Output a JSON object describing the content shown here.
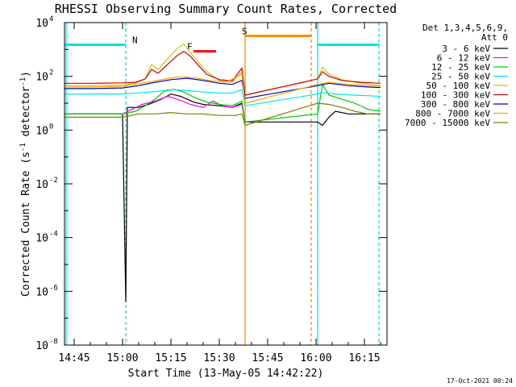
{
  "chart_data": {
    "type": "line",
    "title": "RHESSI Observing Summary Count Rates, Corrected",
    "xlabel": "Start Time (13-May-05 14:42:22)",
    "ylabel_main": "Corrected Count Rate (s",
    "ylabel_exp1": "-1",
    "ylabel_mid": " detector",
    "ylabel_exp2": "-1",
    "ylabel_end": ")",
    "log_y": true,
    "grid": false,
    "xlim": [
      "14:42",
      "16:22"
    ],
    "ylim": [
      1e-08,
      10000.0
    ],
    "x_ticks": [
      {
        "t": "14:45",
        "label": "14:45"
      },
      {
        "t": "15:00",
        "label": "15:00"
      },
      {
        "t": "15:15",
        "label": "15:15"
      },
      {
        "t": "15:30",
        "label": "15:30"
      },
      {
        "t": "15:45",
        "label": "15:45"
      },
      {
        "t": "16:00",
        "label": "16:00"
      },
      {
        "t": "16:15",
        "label": "16:15"
      }
    ],
    "y_ticks": [
      {
        "exp": 4,
        "base": "10",
        "sup": "4"
      },
      {
        "exp": 2,
        "base": "10",
        "sup": "2"
      },
      {
        "exp": 0,
        "base": "10",
        "sup": "0"
      },
      {
        "exp": -2,
        "base": "10",
        "sup": "-2"
      },
      {
        "exp": -4,
        "base": "10",
        "sup": "-4"
      },
      {
        "exp": -6,
        "base": "10",
        "sup": "-6"
      },
      {
        "exp": -8,
        "base": "10",
        "sup": "-8"
      }
    ],
    "legend_header": [
      "Det 1,3,4,5,6,9,",
      "Att 0"
    ],
    "legend_position": "top-right",
    "time_markers": [
      {
        "t": "14:42:30",
        "color": "#00e5e5",
        "style": "solid"
      },
      {
        "t": "15:01:00",
        "color": "#00e5e5",
        "style": "dashed"
      },
      {
        "t": "15:38:00",
        "color": "#ff8c00",
        "style": "solid"
      },
      {
        "t": "15:58:30",
        "color": "#ff8c00",
        "style": "dashed"
      },
      {
        "t": "16:00:30",
        "color": "#00e5e5",
        "style": "solid"
      },
      {
        "t": "16:19:30",
        "color": "#00e5e5",
        "style": "dashed"
      }
    ],
    "flag_bars": [
      {
        "label": "N",
        "t_start": "14:42",
        "t_end": "15:01",
        "value": 1500,
        "color": "#00e5e5",
        "label_t": "15:03"
      },
      {
        "label": "S",
        "t_start": "15:38",
        "t_end": "15:58:30",
        "value": 3200,
        "color": "#ff8c00",
        "label_t": "15:37"
      },
      {
        "label": "",
        "t_start": "16:00:30",
        "t_end": "16:19:30",
        "value": 1500,
        "color": "#00e5e5",
        "label_t": ""
      },
      {
        "label": "F",
        "t_start": "15:22",
        "t_end": "15:29",
        "value": 850,
        "color": "#ff0000",
        "label_t": "15:20"
      }
    ],
    "series": [
      {
        "name": "3 - 6 keV",
        "color": "#000000",
        "points": [
          [
            "14:42",
            4
          ],
          [
            "14:50",
            4
          ],
          [
            "15:00",
            4
          ],
          [
            "15:01",
            4e-07
          ],
          [
            "15:01:30",
            7
          ],
          [
            "15:05",
            7
          ],
          [
            "15:08",
            9
          ],
          [
            "15:12",
            14
          ],
          [
            "15:15",
            22
          ],
          [
            "15:18",
            18
          ],
          [
            "15:22",
            11
          ],
          [
            "15:25",
            9
          ],
          [
            "15:30",
            8
          ],
          [
            "15:34",
            7
          ],
          [
            "15:37",
            10
          ],
          [
            "15:38",
            2
          ],
          [
            "16:00:30",
            2
          ],
          [
            "16:02",
            1.5
          ],
          [
            "16:04",
            3
          ],
          [
            "16:06",
            5
          ],
          [
            "16:10",
            4
          ],
          [
            "16:15",
            4
          ],
          [
            "16:20",
            4
          ]
        ]
      },
      {
        "name": "6 - 12 keV",
        "color": "#ff00ff",
        "points": [
          [
            "14:42",
            4
          ],
          [
            "14:50",
            4
          ],
          [
            "15:00",
            4
          ],
          [
            "15:03",
            6
          ],
          [
            "15:06",
            9
          ],
          [
            "15:10",
            12
          ],
          [
            "15:14",
            18
          ],
          [
            "15:17",
            14
          ],
          [
            "15:21",
            9
          ],
          [
            "15:25",
            7
          ],
          [
            "15:28",
            12
          ],
          [
            "15:31",
            8
          ],
          [
            "15:34",
            7
          ],
          [
            "15:37",
            9
          ],
          [
            "15:38",
            2
          ]
        ]
      },
      {
        "name": "12 - 25 keV",
        "color": "#00cc00",
        "points": [
          [
            "14:42",
            4
          ],
          [
            "14:50",
            4
          ],
          [
            "15:00",
            4
          ],
          [
            "15:04",
            5
          ],
          [
            "15:07",
            8
          ],
          [
            "15:10",
            14
          ],
          [
            "15:13",
            28
          ],
          [
            "15:16",
            33
          ],
          [
            "15:19",
            26
          ],
          [
            "15:22",
            17
          ],
          [
            "15:26",
            11
          ],
          [
            "15:30",
            9
          ],
          [
            "15:34",
            8
          ],
          [
            "15:37",
            12
          ],
          [
            "15:38",
            2
          ],
          [
            "16:00:30",
            4
          ],
          [
            "16:02",
            50
          ],
          [
            "16:04",
            20
          ],
          [
            "16:08",
            14
          ],
          [
            "16:12",
            10
          ],
          [
            "16:16",
            6
          ],
          [
            "16:20",
            5
          ]
        ]
      },
      {
        "name": "25 - 50 keV",
        "color": "#00e5e5",
        "points": [
          [
            "14:42",
            22
          ],
          [
            "14:50",
            22
          ],
          [
            "15:00",
            22
          ],
          [
            "15:05",
            24
          ],
          [
            "15:10",
            27
          ],
          [
            "15:15",
            32
          ],
          [
            "15:20",
            30
          ],
          [
            "15:25",
            26
          ],
          [
            "15:30",
            24
          ],
          [
            "15:34",
            24
          ],
          [
            "15:37",
            32
          ],
          [
            "15:38",
            8
          ],
          [
            "16:00:30",
            22
          ],
          [
            "16:02",
            25
          ],
          [
            "16:06",
            22
          ],
          [
            "16:12",
            20
          ],
          [
            "16:16",
            19
          ],
          [
            "16:20",
            18
          ]
        ]
      },
      {
        "name": "50 - 100 keV",
        "color": "#d4c400",
        "points": [
          [
            "14:42",
            45
          ],
          [
            "14:50",
            45
          ],
          [
            "15:00",
            47
          ],
          [
            "15:04",
            55
          ],
          [
            "15:07",
            80
          ],
          [
            "15:09",
            280
          ],
          [
            "15:11",
            180
          ],
          [
            "15:14",
            450
          ],
          [
            "15:17",
            1100
          ],
          [
            "15:19",
            1600
          ],
          [
            "15:21",
            800
          ],
          [
            "15:23",
            400
          ],
          [
            "15:26",
            150
          ],
          [
            "15:30",
            70
          ],
          [
            "15:34",
            60
          ],
          [
            "15:37",
            150
          ],
          [
            "15:38",
            20
          ],
          [
            "16:00:30",
            80
          ],
          [
            "16:02",
            220
          ],
          [
            "16:04",
            120
          ],
          [
            "16:08",
            75
          ],
          [
            "16:14",
            55
          ],
          [
            "16:20",
            45
          ]
        ]
      },
      {
        "name": "100 - 300 keV",
        "color": "#cc0000",
        "points": [
          [
            "14:42",
            55
          ],
          [
            "14:50",
            55
          ],
          [
            "15:00",
            57
          ],
          [
            "15:04",
            60
          ],
          [
            "15:07",
            80
          ],
          [
            "15:09",
            180
          ],
          [
            "15:11",
            130
          ],
          [
            "15:14",
            280
          ],
          [
            "15:17",
            600
          ],
          [
            "15:19",
            850
          ],
          [
            "15:21",
            560
          ],
          [
            "15:23",
            300
          ],
          [
            "15:26",
            120
          ],
          [
            "15:30",
            75
          ],
          [
            "15:34",
            68
          ],
          [
            "15:37",
            200
          ],
          [
            "15:38",
            20
          ],
          [
            "16:00:30",
            80
          ],
          [
            "16:02",
            150
          ],
          [
            "16:04",
            100
          ],
          [
            "16:08",
            70
          ],
          [
            "16:14",
            60
          ],
          [
            "16:20",
            55
          ]
        ]
      },
      {
        "name": "300 - 800 keV",
        "color": "#0000cc",
        "points": [
          [
            "14:42",
            35
          ],
          [
            "14:50",
            35
          ],
          [
            "15:00",
            37
          ],
          [
            "15:05",
            45
          ],
          [
            "15:10",
            60
          ],
          [
            "15:15",
            75
          ],
          [
            "15:20",
            85
          ],
          [
            "15:25",
            70
          ],
          [
            "15:30",
            55
          ],
          [
            "15:34",
            50
          ],
          [
            "15:37",
            70
          ],
          [
            "15:38",
            15
          ],
          [
            "16:00:30",
            45
          ],
          [
            "16:04",
            55
          ],
          [
            "16:10",
            45
          ],
          [
            "16:16",
            40
          ],
          [
            "16:20",
            38
          ]
        ]
      },
      {
        "name": "800 - 7000 keV",
        "color": "#ffa500",
        "points": [
          [
            "14:42",
            40
          ],
          [
            "14:50",
            40
          ],
          [
            "15:00",
            42
          ],
          [
            "15:06",
            55
          ],
          [
            "15:12",
            75
          ],
          [
            "15:17",
            95
          ],
          [
            "15:22",
            90
          ],
          [
            "15:27",
            70
          ],
          [
            "15:32",
            60
          ],
          [
            "15:37",
            120
          ],
          [
            "15:38",
            10
          ],
          [
            "16:00:30",
            50
          ],
          [
            "16:04",
            60
          ],
          [
            "16:10",
            50
          ],
          [
            "16:16",
            45
          ],
          [
            "16:20",
            42
          ]
        ]
      },
      {
        "name": "7000 - 15000 keV",
        "color": "#808000",
        "points": [
          [
            "14:42",
            3
          ],
          [
            "14:50",
            3
          ],
          [
            "15:00",
            3
          ],
          [
            "15:05",
            4
          ],
          [
            "15:10",
            4
          ],
          [
            "15:15",
            4.5
          ],
          [
            "15:20",
            4
          ],
          [
            "15:25",
            4
          ],
          [
            "15:30",
            3.5
          ],
          [
            "15:35",
            3.5
          ],
          [
            "15:37",
            4
          ],
          [
            "15:38",
            1.5
          ],
          [
            "16:00:30",
            10
          ],
          [
            "16:04",
            9
          ],
          [
            "16:08",
            7
          ],
          [
            "16:12",
            5
          ],
          [
            "16:16",
            4
          ],
          [
            "16:20",
            4
          ]
        ]
      }
    ]
  },
  "footer": {
    "date_stamp": "17-Oct-2021 00:24"
  }
}
